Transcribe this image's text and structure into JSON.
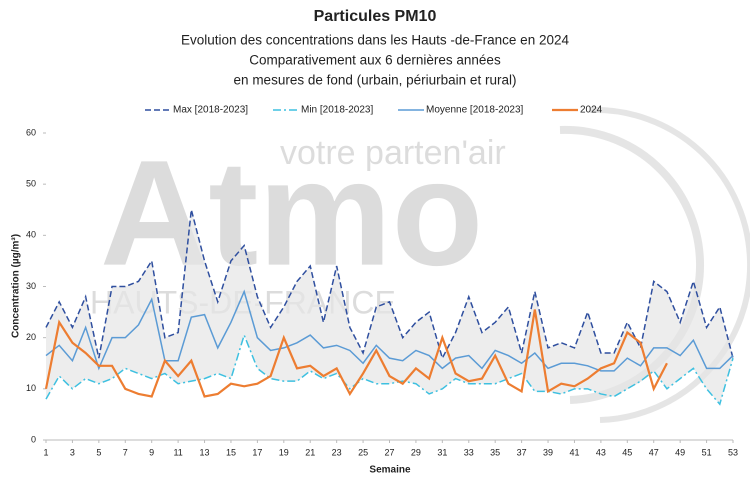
{
  "chart_data": {
    "type": "line",
    "title": "Particules PM10",
    "subtitle": [
      "Evolution des concentrations dans les Hauts -de-France en 2024",
      "Comparativement aux 6 dernières années",
      "en mesures de fond (urbain, périurbain et rural)"
    ],
    "watermark": {
      "logo": "Atmo",
      "tagline": "votre parten'air",
      "region": "HAUTS-DE-FRANCE"
    },
    "xlabel": "Semaine",
    "ylabel": "Concentration (µg/m³)",
    "x": [
      1,
      2,
      3,
      4,
      5,
      6,
      7,
      8,
      9,
      10,
      11,
      12,
      13,
      14,
      15,
      16,
      17,
      18,
      19,
      20,
      21,
      22,
      23,
      24,
      25,
      26,
      27,
      28,
      29,
      30,
      31,
      32,
      33,
      34,
      35,
      36,
      37,
      38,
      39,
      40,
      41,
      42,
      43,
      44,
      45,
      46,
      47,
      48,
      49,
      50,
      51,
      52,
      53
    ],
    "xlim": [
      1,
      53
    ],
    "xticks": [
      1,
      3,
      5,
      7,
      9,
      11,
      13,
      15,
      17,
      19,
      21,
      23,
      25,
      27,
      29,
      31,
      33,
      35,
      37,
      39,
      41,
      43,
      45,
      47,
      49,
      51,
      53
    ],
    "ylim": [
      0,
      60
    ],
    "yticks": [
      0,
      10,
      20,
      30,
      40,
      50,
      60
    ],
    "range_fill": "#e6e6e6",
    "series": [
      {
        "name": "Max [2018-2023]",
        "color": "#2f4f9f",
        "dash": "dashed",
        "values": [
          22,
          27,
          22,
          28,
          16,
          30,
          30,
          31,
          35,
          20,
          21,
          45,
          35,
          27,
          35,
          38,
          28,
          22,
          26,
          31,
          34,
          23,
          34,
          22,
          17,
          26,
          27,
          20,
          23,
          25,
          16,
          21,
          28,
          21,
          23,
          26,
          17,
          29,
          18,
          19,
          18,
          25,
          17,
          17,
          23,
          18,
          31,
          29,
          23,
          31,
          22,
          26,
          16
        ]
      },
      {
        "name": "Min [2018-2023]",
        "color": "#3ec0e0",
        "dash": "dashdot",
        "values": [
          8,
          12.5,
          10,
          12,
          11,
          12,
          14,
          13,
          12,
          13,
          11,
          11.5,
          12,
          13,
          12,
          20.5,
          14,
          12,
          11.5,
          11.5,
          13.5,
          12,
          13,
          10,
          12,
          11,
          11,
          11.5,
          11,
          9,
          10,
          12,
          11,
          11,
          11,
          12,
          13,
          9.5,
          9.5,
          9,
          10,
          10,
          9,
          8.5,
          10,
          11.5,
          13.5,
          10,
          12,
          14,
          10,
          7,
          16
        ]
      },
      {
        "name": "Moyenne [2018-2023]",
        "color": "#5b9bd5",
        "dash": "solid",
        "values": [
          16.5,
          18.5,
          15.5,
          22,
          14,
          20,
          20,
          22.5,
          27.5,
          15.5,
          15.5,
          24,
          24.5,
          18,
          23,
          29,
          20,
          17.5,
          18,
          19,
          20.5,
          18,
          18.5,
          17.5,
          15,
          18.5,
          16,
          15.5,
          17.5,
          16.5,
          14,
          16,
          16.5,
          14,
          17.5,
          16.5,
          15,
          17,
          14,
          15,
          15,
          14.5,
          13.5,
          13.5,
          16,
          14.5,
          18,
          18,
          16.5,
          19.5,
          14,
          14,
          16.5
        ]
      },
      {
        "name": "2024",
        "color": "#ed7d31",
        "dash": "solid",
        "width": 2.2,
        "values": [
          10,
          23,
          19,
          17,
          14.5,
          14.5,
          10,
          9,
          8.5,
          15.5,
          12.5,
          15.5,
          8.5,
          9,
          11,
          10.5,
          11,
          12.5,
          20,
          14,
          14.5,
          12.5,
          14,
          9,
          13,
          17.5,
          12.5,
          11,
          14,
          12,
          20,
          13,
          11.5,
          12,
          16.5,
          11,
          9.5,
          25.5,
          9.5,
          11,
          10.5,
          12,
          14,
          15,
          21,
          19,
          10,
          15,
          null,
          null,
          null,
          null,
          null
        ]
      }
    ]
  }
}
